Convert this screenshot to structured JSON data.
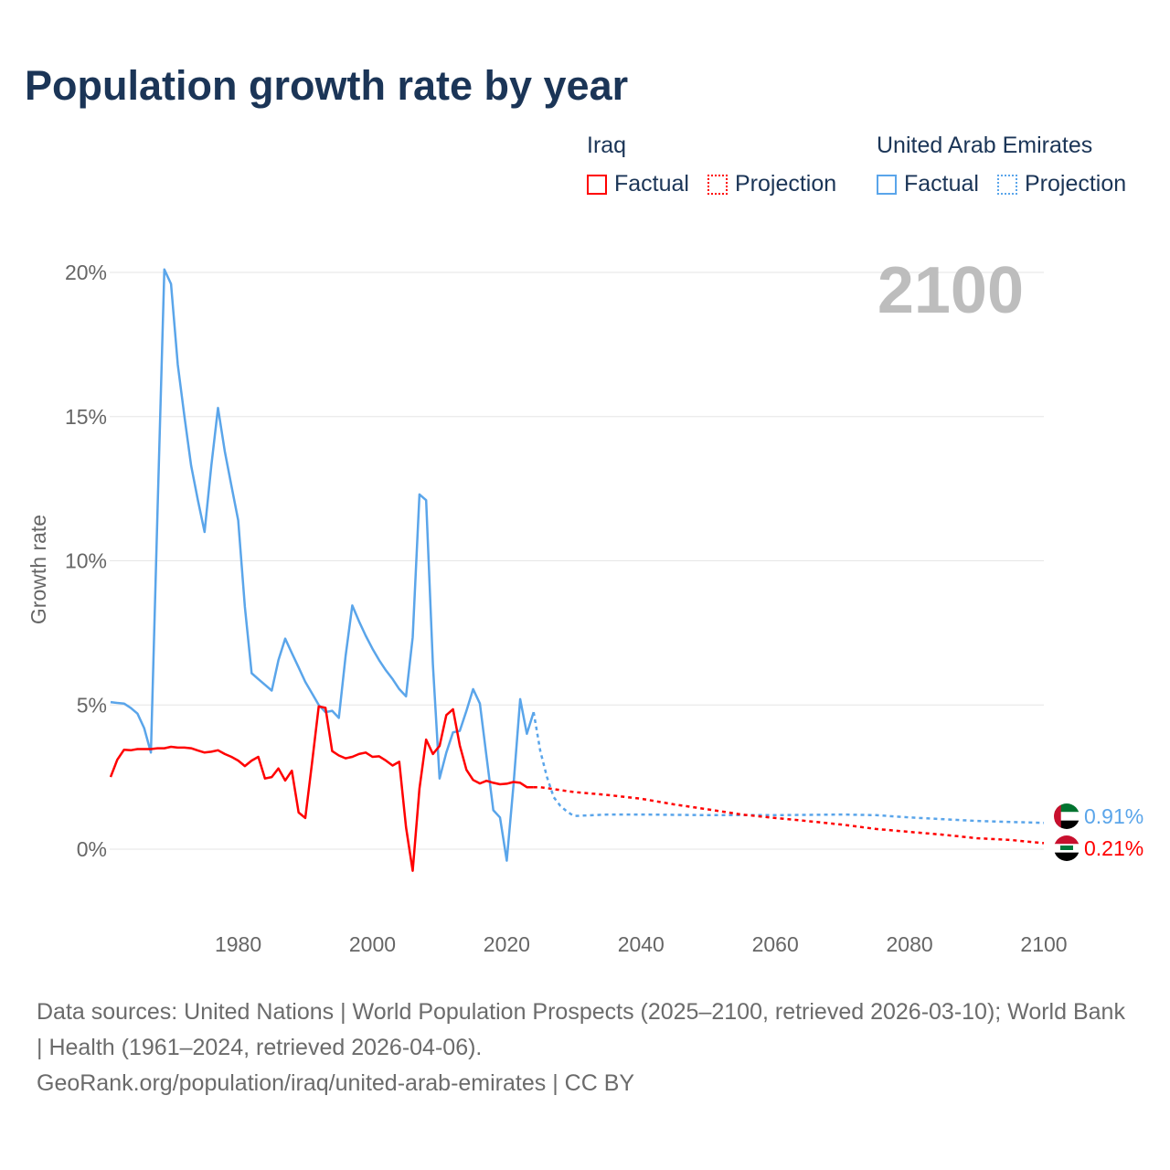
{
  "title": "Population growth rate by year",
  "legend": {
    "groups": [
      {
        "name": "Iraq",
        "factual": "Factual",
        "projection": "Projection",
        "color": "#ff0000"
      },
      {
        "name": "United Arab Emirates",
        "factual": "Factual",
        "projection": "Projection",
        "color": "#5aa5ea"
      }
    ]
  },
  "footer": {
    "sources": "Data sources: United Nations | World Population Prospects (2025–2100, retrieved 2026-03-10); World Bank | Health (1961–2024, retrieved 2026-04-06).",
    "link": "GeoRank.org/population/iraq/united-arab-emirates | CC BY"
  },
  "chart_data": {
    "type": "line",
    "title": "Population growth rate by year",
    "xlabel": "",
    "ylabel": "Growth rate",
    "xlim": [
      1961,
      2100
    ],
    "ylim": [
      -2.5,
      20.5
    ],
    "x_ticks": [
      "1980",
      "2000",
      "2020",
      "2040",
      "2060",
      "2080",
      "2100"
    ],
    "y_ticks": [
      "0%",
      "5%",
      "10%",
      "15%",
      "20%"
    ],
    "year_label": "2100",
    "grid": true,
    "series": [
      {
        "name": "Iraq",
        "color": "#ff0000",
        "end_label": "0.21%",
        "factual_x": [
          1961,
          1962,
          1963,
          1964,
          1965,
          1966,
          1967,
          1968,
          1969,
          1970,
          1971,
          1972,
          1973,
          1974,
          1975,
          1976,
          1977,
          1978,
          1979,
          1980,
          1981,
          1982,
          1983,
          1984,
          1985,
          1986,
          1987,
          1988,
          1989,
          1990,
          1991,
          1992,
          1993,
          1994,
          1995,
          1996,
          1997,
          1998,
          1999,
          2000,
          2001,
          2002,
          2003,
          2004,
          2005,
          2006,
          2007,
          2008,
          2009,
          2010,
          2011,
          2012,
          2013,
          2014,
          2015,
          2016,
          2017,
          2018,
          2019,
          2020,
          2021,
          2022,
          2023,
          2024
        ],
        "factual_y": [
          2.5,
          3.1,
          3.45,
          3.43,
          3.47,
          3.47,
          3.47,
          3.5,
          3.5,
          3.55,
          3.52,
          3.52,
          3.5,
          3.42,
          3.35,
          3.38,
          3.43,
          3.3,
          3.2,
          3.07,
          2.88,
          3.07,
          3.2,
          2.45,
          2.5,
          2.8,
          2.38,
          2.72,
          1.27,
          1.08,
          3.0,
          4.95,
          4.9,
          3.4,
          3.25,
          3.15,
          3.2,
          3.3,
          3.35,
          3.2,
          3.22,
          3.07,
          2.9,
          3.03,
          0.76,
          -0.75,
          2.1,
          3.8,
          3.3,
          3.58,
          4.65,
          4.85,
          3.6,
          2.75,
          2.4,
          2.28,
          2.37,
          2.3,
          2.25,
          2.27,
          2.33,
          2.3,
          2.15,
          2.15
        ],
        "projection_x": [
          2024,
          2025,
          2030,
          2035,
          2040,
          2045,
          2050,
          2055,
          2060,
          2065,
          2070,
          2075,
          2080,
          2085,
          2090,
          2095,
          2100
        ],
        "projection_y": [
          2.15,
          2.15,
          1.98,
          1.88,
          1.75,
          1.55,
          1.38,
          1.2,
          1.08,
          0.97,
          0.85,
          0.7,
          0.6,
          0.5,
          0.38,
          0.32,
          0.21
        ]
      },
      {
        "name": "United Arab Emirates",
        "color": "#5aa5ea",
        "end_label": "0.91%",
        "factual_x": [
          1961,
          1962,
          1963,
          1964,
          1965,
          1966,
          1967,
          1968,
          1969,
          1970,
          1971,
          1972,
          1973,
          1974,
          1975,
          1976,
          1977,
          1978,
          1979,
          1980,
          1981,
          1982,
          1983,
          1984,
          1985,
          1986,
          1987,
          1988,
          1989,
          1990,
          1991,
          1992,
          1993,
          1994,
          1995,
          1996,
          1997,
          1998,
          1999,
          2000,
          2001,
          2002,
          2003,
          2004,
          2005,
          2006,
          2007,
          2008,
          2009,
          2010,
          2011,
          2012,
          2013,
          2014,
          2015,
          2016,
          2017,
          2018,
          2019,
          2020,
          2021,
          2022,
          2023,
          2024
        ],
        "factual_y": [
          5.1,
          5.07,
          5.05,
          4.9,
          4.7,
          4.2,
          3.35,
          11.8,
          20.1,
          19.6,
          16.8,
          15.0,
          13.3,
          12.1,
          11.0,
          13.3,
          15.3,
          13.8,
          12.6,
          11.4,
          8.4,
          6.1,
          5.9,
          5.7,
          5.5,
          6.55,
          7.3,
          6.8,
          6.3,
          5.8,
          5.4,
          5.0,
          4.75,
          4.8,
          4.55,
          6.7,
          8.45,
          7.9,
          7.4,
          6.95,
          6.55,
          6.2,
          5.9,
          5.55,
          5.3,
          7.35,
          12.3,
          12.1,
          6.4,
          2.45,
          3.35,
          4.05,
          4.1,
          4.8,
          5.55,
          5.05,
          3.2,
          1.35,
          1.1,
          -0.4,
          2.2,
          5.2,
          4.0,
          4.75
        ],
        "projection_x": [
          2024,
          2025,
          2026,
          2027,
          2028,
          2029,
          2030,
          2032,
          2035,
          2040,
          2050,
          2060,
          2070,
          2075,
          2080,
          2090,
          2100
        ],
        "projection_y": [
          4.75,
          3.4,
          2.5,
          1.8,
          1.5,
          1.3,
          1.15,
          1.17,
          1.2,
          1.2,
          1.18,
          1.18,
          1.2,
          1.18,
          1.1,
          0.98,
          0.91
        ]
      }
    ]
  }
}
